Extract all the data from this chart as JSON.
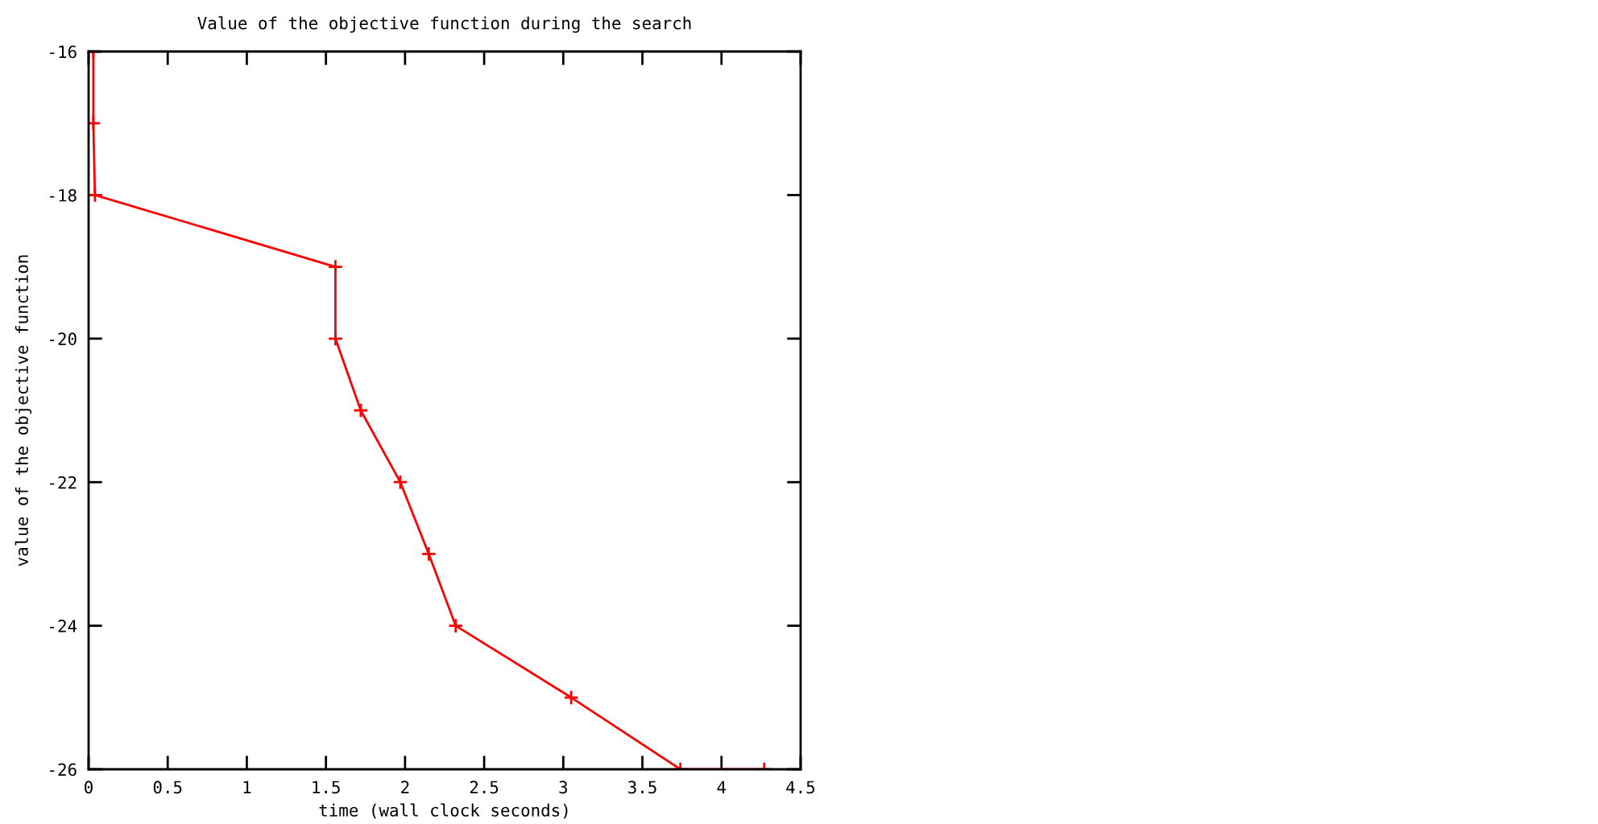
{
  "chart_data": {
    "type": "line",
    "title": "Value of the objective function during the search",
    "xlabel": "time (wall clock seconds)",
    "ylabel": "value of the objective function",
    "x": [
      0.03,
      0.03,
      0.04,
      1.56,
      1.56,
      1.72,
      1.97,
      2.15,
      2.32,
      3.05,
      3.74,
      4.27
    ],
    "series": [
      {
        "color": "#ff0000",
        "values": [
          -16,
          -17,
          -18,
          -19,
          -20,
          -21,
          -22,
          -23,
          -24,
          -25,
          -26,
          -26
        ]
      }
    ],
    "xlim": [
      0,
      4.5
    ],
    "ylim": [
      -26,
      -16
    ],
    "xticks": [
      0,
      0.5,
      1,
      1.5,
      2,
      2.5,
      3,
      3.5,
      4,
      4.5
    ],
    "yticks": [
      -26,
      -24,
      -22,
      -20,
      -18,
      -16
    ],
    "grid": false,
    "marker": "cross",
    "line_style": "solid"
  }
}
